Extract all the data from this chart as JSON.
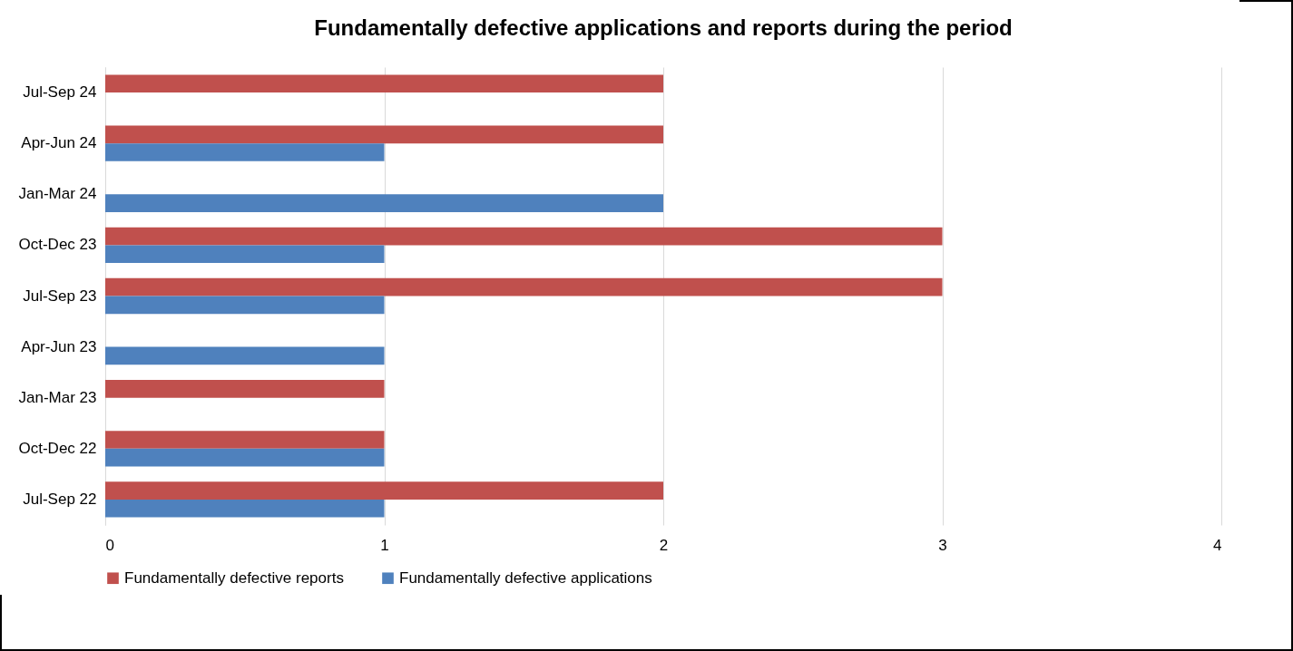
{
  "chart_data": {
    "type": "bar",
    "orientation": "horizontal",
    "title": "Fundamentally defective applications and reports during the period",
    "categories": [
      "Jul-Sep 24",
      "Apr-Jun 24",
      "Jan-Mar 24",
      "Oct-Dec 23",
      "Jul-Sep 23",
      "Apr-Jun 23",
      "Jan-Mar 23",
      "Oct-Dec 22",
      "Jul-Sep 22"
    ],
    "series": [
      {
        "name": "Fundamentally defective reports",
        "color": "#c0504d",
        "values": [
          2,
          2,
          0,
          3,
          3,
          0,
          1,
          1,
          2
        ]
      },
      {
        "name": "Fundamentally defective applications",
        "color": "#4f81bd",
        "values": [
          0,
          1,
          2,
          1,
          1,
          1,
          0,
          1,
          1
        ]
      }
    ],
    "xlim": [
      0,
      4
    ],
    "xticks": [
      0,
      1,
      2,
      3,
      4
    ],
    "grid": "x",
    "legend": "bottom"
  }
}
